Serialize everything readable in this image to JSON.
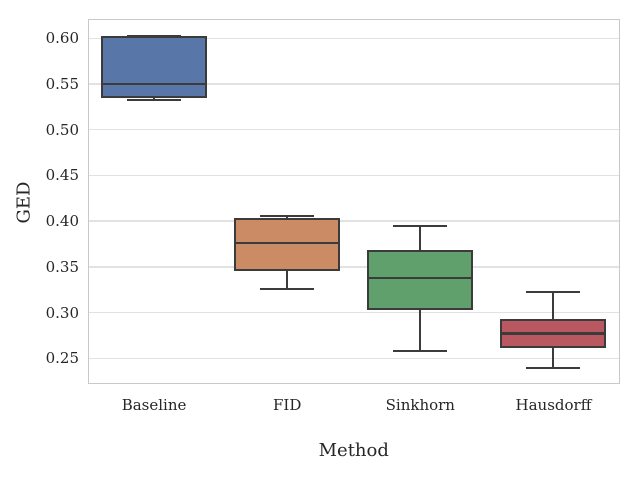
{
  "chart_data": {
    "type": "box",
    "title": "",
    "xlabel": "Method",
    "ylabel": "GED",
    "categories": [
      "Baseline",
      "FID",
      "Sinkhorn",
      "Hausdorff"
    ],
    "yticks": [
      {
        "value": 0.25,
        "label": "0.25"
      },
      {
        "value": 0.3,
        "label": "0.30"
      },
      {
        "value": 0.35,
        "label": "0.35"
      },
      {
        "value": 0.4,
        "label": "0.40"
      },
      {
        "value": 0.45,
        "label": "0.45"
      },
      {
        "value": 0.5,
        "label": "0.50"
      },
      {
        "value": 0.55,
        "label": "0.55"
      },
      {
        "value": 0.6,
        "label": "0.60"
      }
    ],
    "ylim": [
      0.222,
      0.621
    ],
    "grid": "horizontal",
    "legend": "none",
    "style_colors": {
      "line": "#3b3b3b",
      "grid": "#e2e2e2",
      "spine": "#c9c9c9",
      "text": "#262626",
      "background": "#ffffff"
    },
    "boxes": [
      {
        "label": "Baseline",
        "whislo": 0.532,
        "q1": 0.535,
        "med": 0.55,
        "q3": 0.602,
        "whishi": 0.602,
        "color": "#5876A8"
      },
      {
        "label": "FID",
        "whislo": 0.326,
        "q1": 0.345,
        "med": 0.376,
        "q3": 0.403,
        "whishi": 0.406,
        "color": "#CB8B64"
      },
      {
        "label": "Sinkhorn",
        "whislo": 0.258,
        "q1": 0.303,
        "med": 0.338,
        "q3": 0.369,
        "whishi": 0.395,
        "color": "#5FA06C"
      },
      {
        "label": "Hausdorff",
        "whislo": 0.24,
        "q1": 0.261,
        "med": 0.277,
        "q3": 0.293,
        "whishi": 0.323,
        "color": "#BA5861"
      }
    ]
  }
}
